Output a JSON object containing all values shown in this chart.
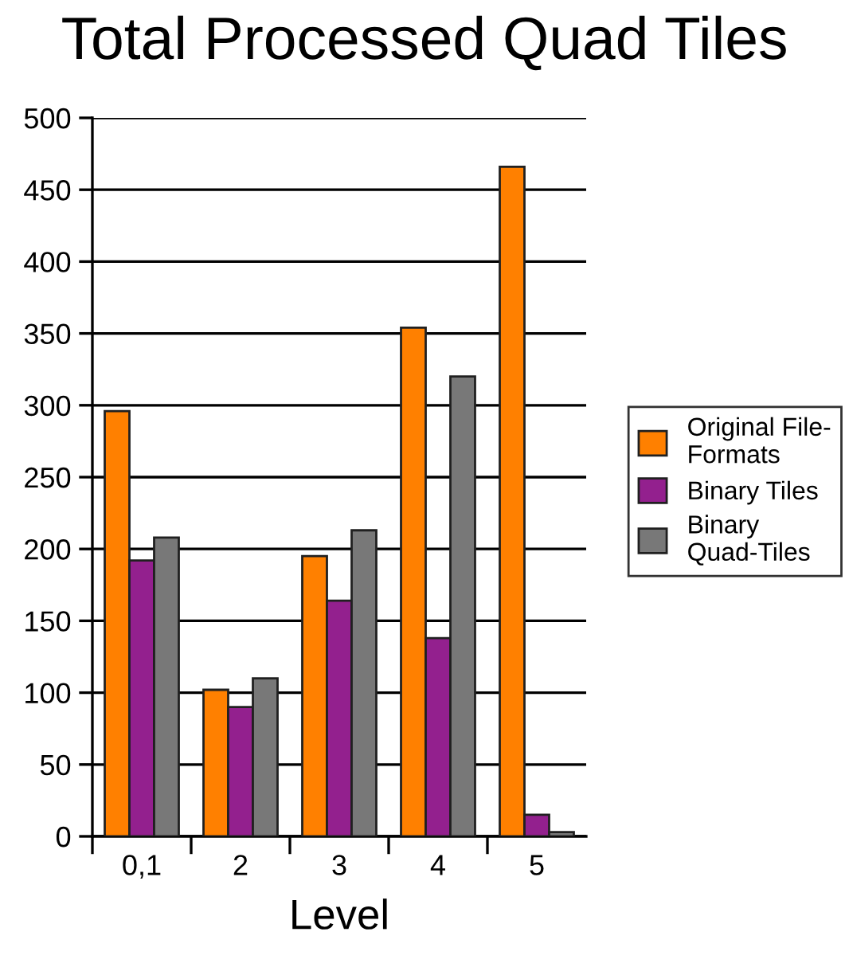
{
  "chart_data": {
    "type": "bar",
    "title": "Total Processed Quad Tiles",
    "xlabel": "Level",
    "categories": [
      "0,1",
      "2",
      "3",
      "4",
      "5"
    ],
    "series": [
      {
        "name": "Original File-\nFormats",
        "color": "#ff8000",
        "values": [
          296,
          102,
          195,
          354,
          466
        ]
      },
      {
        "name": "Binary Tiles",
        "color": "#93208e",
        "values": [
          192,
          90,
          164,
          138,
          15
        ]
      },
      {
        "name": "Binary\nQuad-Tiles",
        "color": "#787878",
        "values": [
          208,
          110,
          213,
          320,
          3
        ]
      }
    ],
    "ylim": [
      0,
      500
    ],
    "yticks": [
      0,
      50,
      100,
      150,
      200,
      250,
      300,
      350,
      400,
      450,
      500
    ],
    "grid": "y",
    "legend": "right"
  }
}
